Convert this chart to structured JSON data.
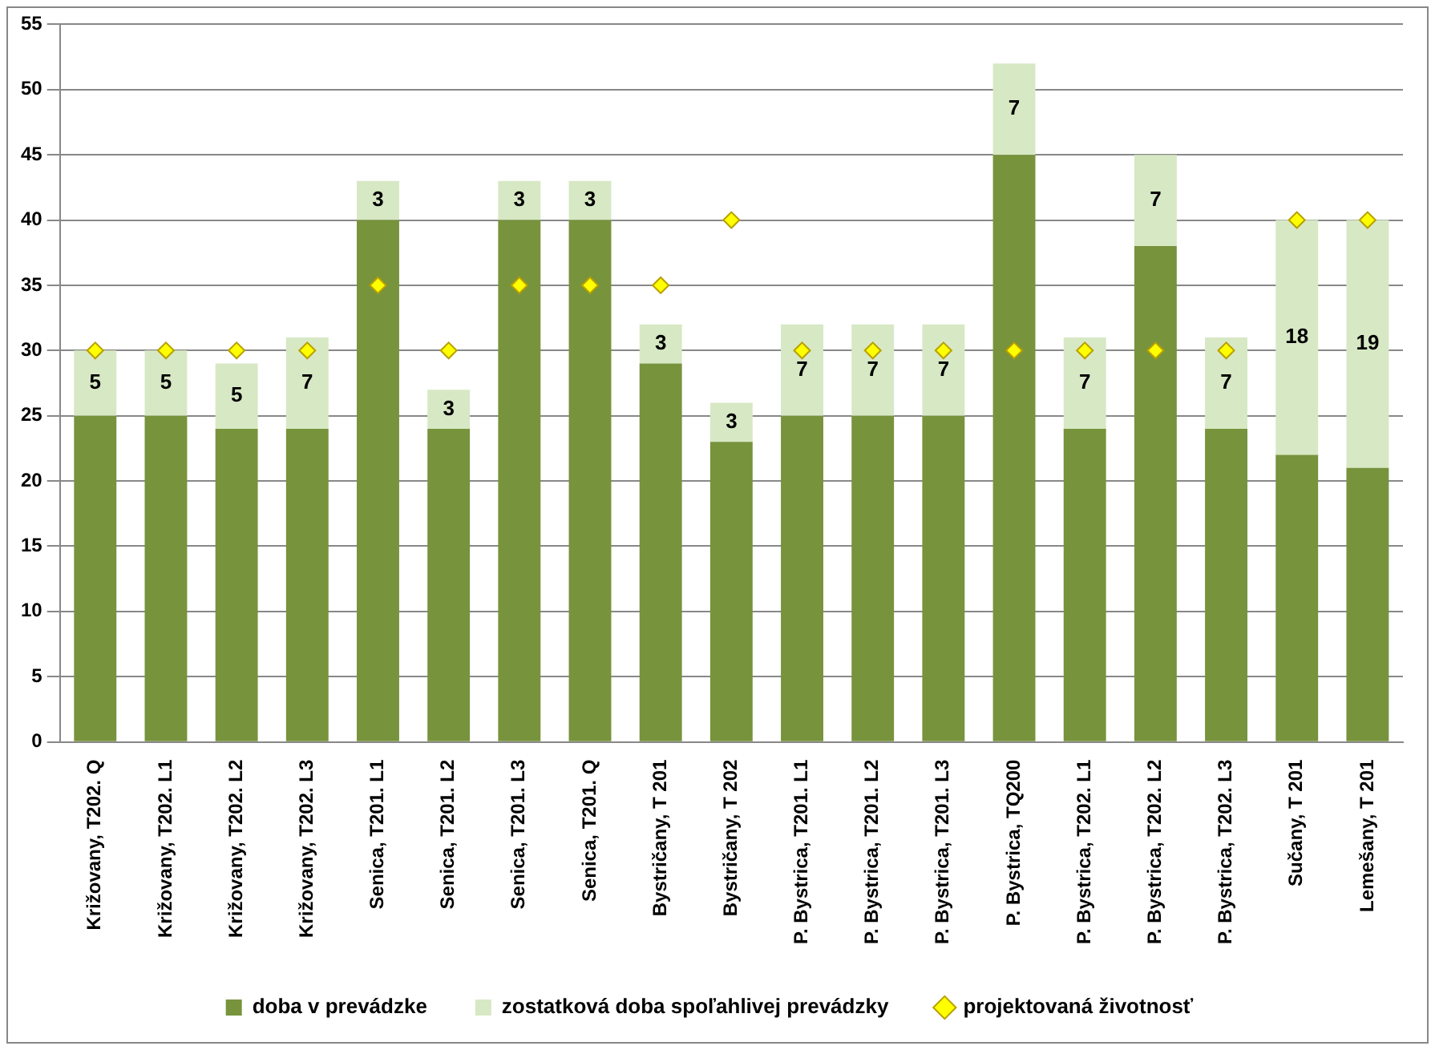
{
  "chart_data": {
    "type": "bar",
    "stacked": true,
    "grid": "y",
    "legend": "bottom",
    "marker": "diamond",
    "categories": [
      "Križovany, T202. Q",
      "Križovany, T202. L1",
      "Križovany, T202. L2",
      "Križovany, T202. L3",
      "Senica, T201. L1",
      "Senica, T201. L2",
      "Senica, T201. L3",
      "Senica, T201. Q",
      "Bystričany, T 201",
      "Bystričany, T 202",
      "P. Bystrica, T201. L1",
      "P. Bystrica, T201. L2",
      "P. Bystrica, T201. L3",
      "P. Bystrica, TQ200",
      "P. Bystrica, T202. L1",
      "P. Bystrica, T202. L2",
      "P. Bystrica, T202. L3",
      "Sučany, T 201",
      "Lemešany, T 201"
    ],
    "series": [
      {
        "name": "doba v prevádzke",
        "color": "#77933c",
        "values": [
          25,
          25,
          24,
          24,
          40,
          24,
          40,
          40,
          29,
          23,
          25,
          25,
          25,
          45,
          24,
          38,
          24,
          22,
          21
        ]
      },
      {
        "name": "zostatková doba spoľahlivej prevádzky",
        "color": "#d7e8c4",
        "values": [
          5,
          5,
          5,
          7,
          3,
          3,
          3,
          3,
          3,
          3,
          7,
          7,
          7,
          7,
          7,
          7,
          7,
          18,
          19
        ],
        "value_labels": [
          "5",
          "5",
          "5",
          "7",
          "3",
          "3",
          "3",
          "3",
          "3",
          "3",
          "7",
          "7",
          "7",
          "7",
          "7",
          "7",
          "7",
          "18",
          "19"
        ]
      },
      {
        "name": "projektovaná životnosť",
        "type": "scatter",
        "color": "#ffff00",
        "values": [
          30,
          30,
          30,
          30,
          35,
          30,
          35,
          35,
          35,
          40,
          30,
          30,
          30,
          30,
          30,
          30,
          30,
          40,
          40
        ]
      }
    ],
    "ylim": [
      0,
      55
    ],
    "yticks": [
      0,
      5,
      10,
      15,
      20,
      25,
      30,
      35,
      40,
      45,
      50,
      55
    ]
  }
}
